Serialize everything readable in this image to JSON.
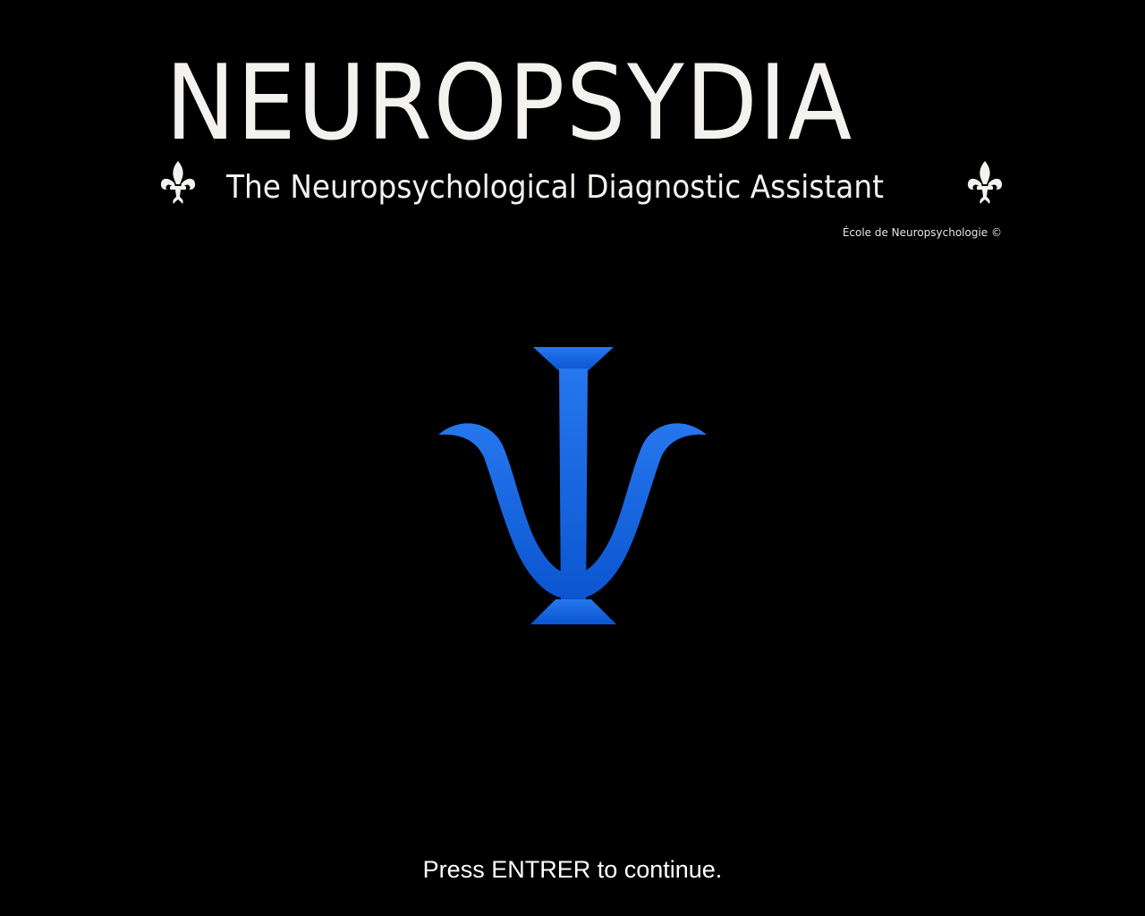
{
  "header": {
    "title": "NEUROPSYDIA",
    "subtitle": "The Neuropsychological Diagnostic Assistant",
    "copyright": "École de Neuropsychologie ©",
    "ornament_icon": "fleur-de-lis-icon"
  },
  "logo": {
    "icon": "psi-icon",
    "color": "#1f6fe8",
    "color_dark": "#0a4fc4"
  },
  "footer": {
    "prompt": "Press ENTRER to continue."
  },
  "colors": {
    "background": "#000000",
    "text": "#f4f2ee"
  }
}
